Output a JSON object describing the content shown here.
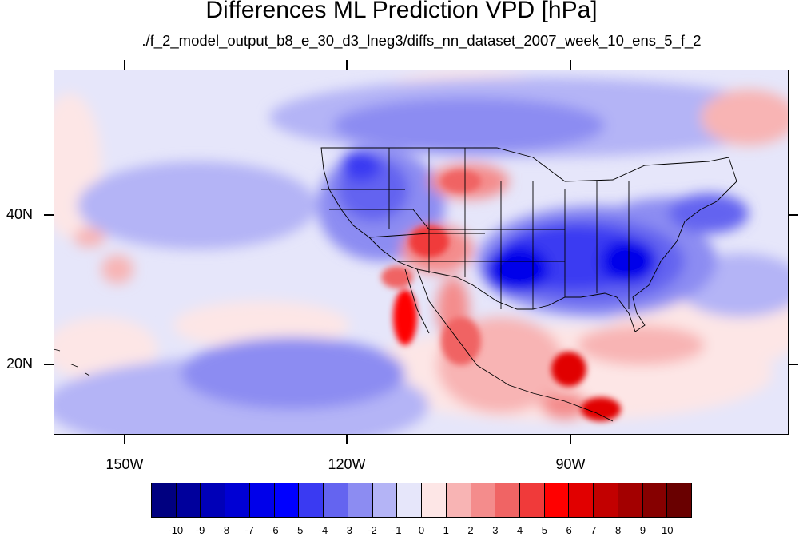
{
  "title": "Differences ML Prediction VPD [hPa]",
  "subtitle": "./f_2_model_output_b8_e_30_d3_lneg3/diffs_nn_dataset_2007_week_10_ens_5_f_2",
  "axes": {
    "lat_labels": [
      "40N",
      "20N"
    ],
    "lon_labels": [
      "150W",
      "120W",
      "90W"
    ]
  },
  "colorbar": {
    "labels": [
      "-10",
      "-9",
      "-8",
      "-7",
      "-6",
      "-5",
      "-4",
      "-3",
      "-2",
      "-1",
      "0",
      "1",
      "2",
      "3",
      "4",
      "5",
      "6",
      "7",
      "8",
      "9",
      "10"
    ],
    "colors": [
      "#000080",
      "#00009c",
      "#0000b8",
      "#0000d4",
      "#0000ea",
      "#0000ff",
      "#3a3af2",
      "#6464f0",
      "#8c8cf2",
      "#b4b4f6",
      "#e6e6fa",
      "#fde6e6",
      "#f8b4b4",
      "#f48c8c",
      "#f06464",
      "#f03a3a",
      "#ff0000",
      "#e10000",
      "#c20000",
      "#a30000",
      "#860000",
      "#690000"
    ]
  }
}
